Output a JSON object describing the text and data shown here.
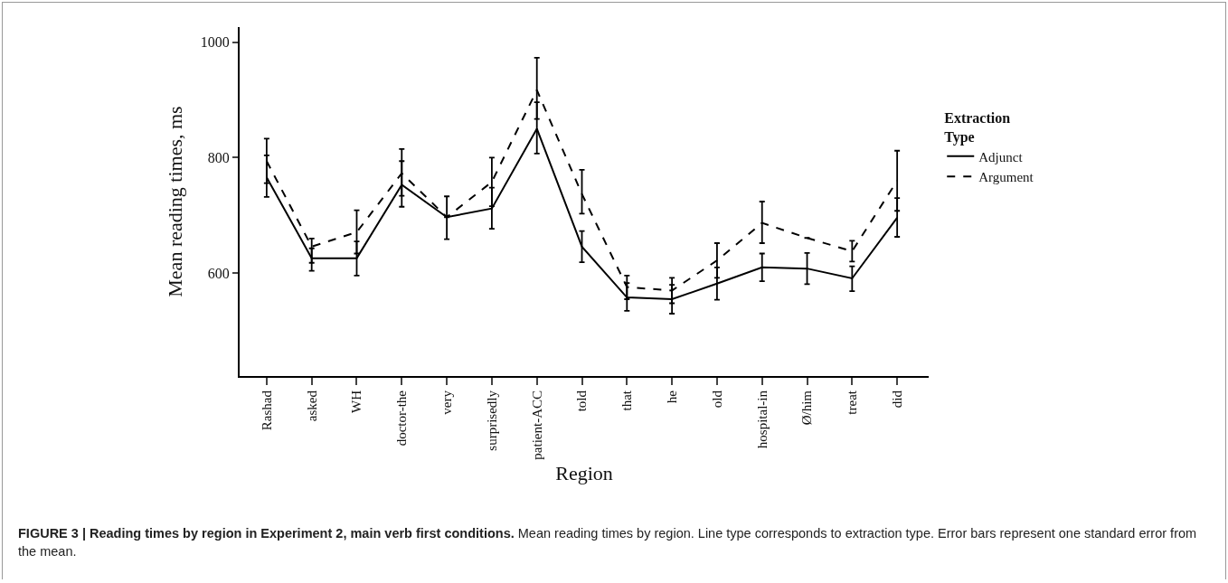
{
  "chart_data": {
    "type": "line",
    "xlabel": "Region",
    "ylabel": "Mean reading times, ms",
    "legend_title": "Extraction Type",
    "categories": [
      "Rashad",
      "asked",
      "WH",
      "doctor-the",
      "very",
      "surprisedly",
      "patient-ACC",
      "told",
      "that",
      "he",
      "old",
      "hospital-in",
      "Ø/him",
      "treat",
      "did"
    ],
    "series": [
      {
        "name": "Adjunct",
        "color": "#000000",
        "line_style": "solid",
        "values": [
          766,
          626,
          626,
          753,
          697,
          712,
          850,
          646,
          558,
          555,
          582,
          610,
          608,
          591,
          696
        ],
        "errors": [
          [
            732,
            804
          ],
          [
            604,
            643
          ],
          [
            596,
            655
          ],
          [
            715,
            794
          ],
          [
            659,
            733
          ],
          [
            677,
            748
          ],
          [
            807,
            896
          ],
          [
            619,
            673
          ],
          [
            535,
            583
          ],
          [
            530,
            580
          ],
          [
            554,
            610
          ],
          [
            586,
            634
          ],
          [
            581,
            635
          ],
          [
            569,
            612
          ],
          [
            663,
            730
          ]
        ]
      },
      {
        "name": "Argument",
        "color": "#000000",
        "line_style": "dashed",
        "values": [
          794,
          646,
          671,
          773,
          697,
          758,
          917,
          737,
          576,
          570,
          622,
          687,
          661,
          638,
          760
        ],
        "errors": [
          [
            756,
            833
          ],
          [
            618,
            660
          ],
          [
            634,
            709
          ],
          [
            734,
            815
          ],
          null,
          [
            716,
            800
          ],
          [
            867,
            973
          ],
          [
            703,
            779
          ],
          [
            555,
            596
          ],
          [
            548,
            592
          ],
          [
            592,
            652
          ],
          [
            652,
            724
          ],
          null,
          [
            620,
            656
          ],
          [
            708,
            812
          ]
        ]
      }
    ],
    "ylim": [
      422,
      1026
    ],
    "yticks": [
      600,
      800,
      1000
    ],
    "grid": false,
    "legend": "right",
    "marker": "none",
    "annotations": [
      "FIGURE 3 | Reading times by region in Experiment 2, main verb first conditions.",
      "Mean reading times by region. Line type corresponds to extraction type. Error bars represent one standard error from the mean."
    ]
  }
}
